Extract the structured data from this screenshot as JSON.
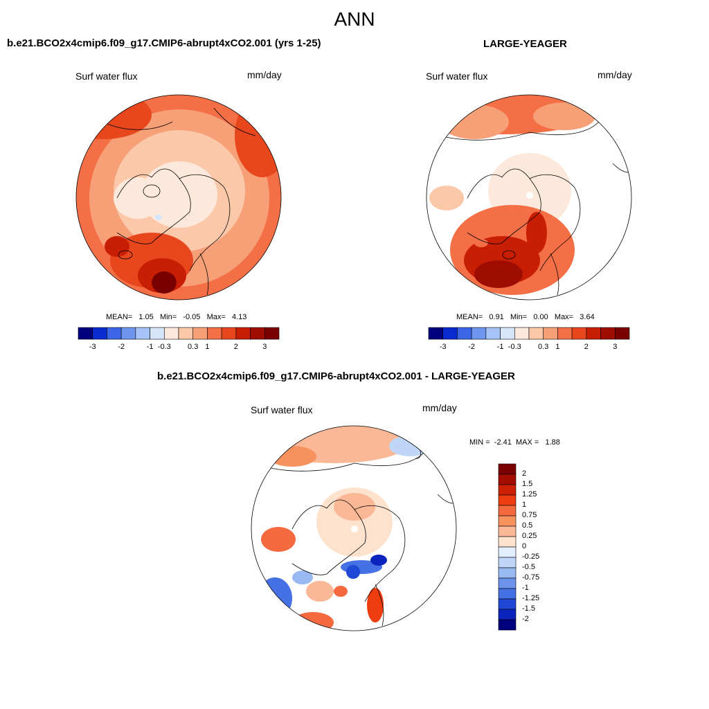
{
  "main_title": "ANN",
  "panels": [
    {
      "title": "b.e21.BCO2x4cmip6.f09_g17.CMIP6-abrupt4xCO2.001 (yrs 1-25)",
      "variable": "Surf water flux",
      "units": "mm/day",
      "stats": {
        "mean_label": "MEAN=",
        "mean": "1.05",
        "min_label": "Min=",
        "min": "-0.05",
        "max_label": "Max=",
        "max": "4.13"
      },
      "colorbar_ticks": [
        "-3",
        "-2",
        "-1",
        "-0.3",
        "0.3",
        "1",
        "2",
        "3"
      ]
    },
    {
      "title": "LARGE-YEAGER",
      "variable": "Surf water flux",
      "units": "mm/day",
      "stats": {
        "mean_label": "MEAN=",
        "mean": "0.91",
        "min_label": "Min=",
        "min": "0.00",
        "max_label": "Max=",
        "max": "3.64"
      },
      "colorbar_ticks": [
        "-3",
        "-2",
        "-1",
        "-0.3",
        "0.3",
        "1",
        "2",
        "3"
      ]
    },
    {
      "title": "b.e21.BCO2x4cmip6.f09_g17.CMIP6-abrupt4xCO2.001 - LARGE-YEAGER",
      "variable": "Surf water flux",
      "units": "mm/day",
      "stats": {
        "min_label": "MIN =",
        "min": "-2.41",
        "max_label": "MAX =",
        "max": "1.88"
      },
      "colorbar_ticks": [
        "2",
        "1.5",
        "1.25",
        "1",
        "0.75",
        "0.5",
        "0.25",
        "0",
        "-0.25",
        "-0.5",
        "-0.75",
        "-1",
        "-1.25",
        "-1.5",
        "-2"
      ]
    }
  ],
  "colors": {
    "abs_scale": [
      "#00007f",
      "#0a2bd0",
      "#3d66e6",
      "#6f96ef",
      "#a5c3f6",
      "#d5e6fb",
      "#fde9db",
      "#fbc9aa",
      "#f7a078",
      "#f46f46",
      "#e8461d",
      "#c81e04",
      "#9f0d00",
      "#7a0000"
    ],
    "diff_scale": [
      "#7a0000",
      "#a50d00",
      "#cc2203",
      "#ee3e10",
      "#f4693e",
      "#f7925f",
      "#fab896",
      "#fde2cd",
      "#e2eefc",
      "#c0d6f8",
      "#99b9f2",
      "#6d94ec",
      "#4571e4",
      "#2147d6",
      "#0a24bd",
      "#00007f"
    ],
    "land_outline": "#000000"
  }
}
